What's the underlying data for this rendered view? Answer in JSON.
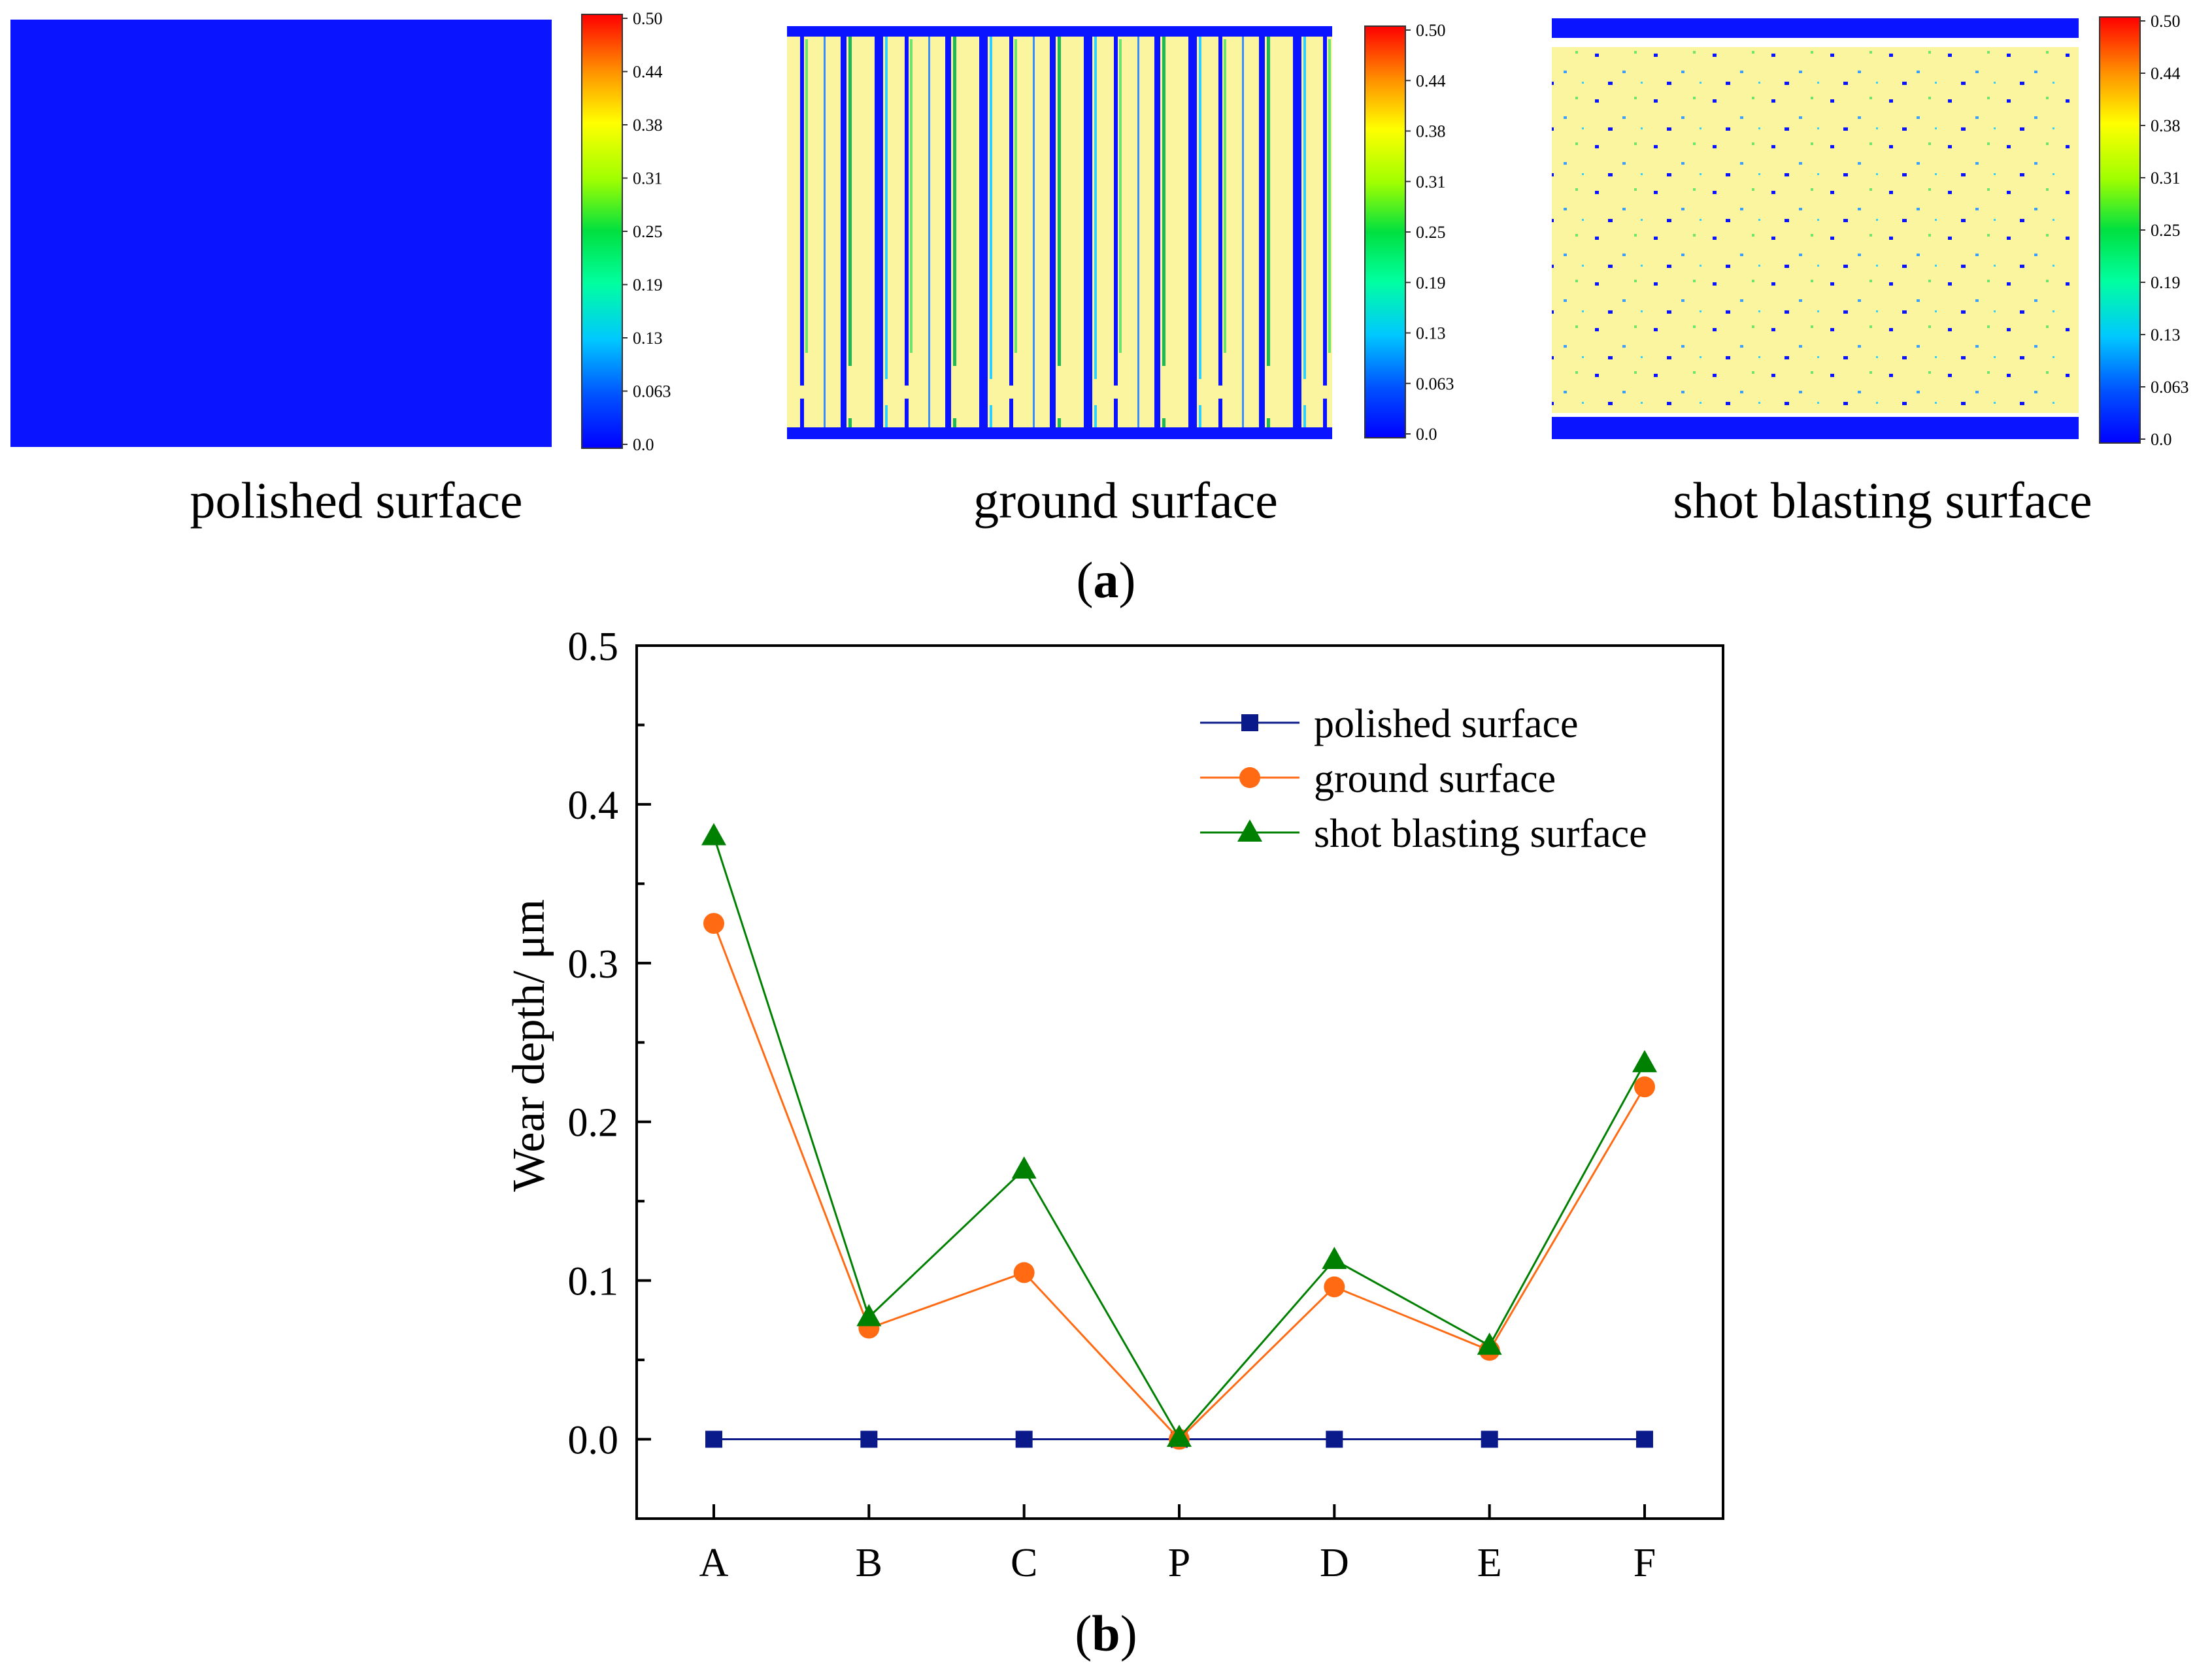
{
  "panel_a": {
    "label_paren_open": "(",
    "label_letter": "a",
    "label_paren_close": ")",
    "colorbar_ticks": [
      "0.50",
      "0.44",
      "0.38",
      "0.31",
      "0.25",
      "0.19",
      "0.13",
      "0.063",
      "0.0"
    ],
    "maps": [
      {
        "caption": "polished surface",
        "surface": "polished"
      },
      {
        "caption": "ground surface",
        "surface": "ground"
      },
      {
        "caption": "shot blasting surface",
        "surface": "shot_blasting"
      }
    ]
  },
  "panel_b": {
    "label_paren_open": "(",
    "label_letter": "b",
    "label_paren_close": ")"
  },
  "colors": {
    "polished": "#0b1a8a",
    "ground": "#ff6a13",
    "shot_blasting": "#008000",
    "map_blue": "#0a14ff",
    "map_yellow": "#fbf5a0"
  },
  "chart_data": {
    "type": "line",
    "title": "",
    "xlabel": "",
    "ylabel": "Wear depth/ μm",
    "categories": [
      "A",
      "B",
      "C",
      "P",
      "D",
      "E",
      "F"
    ],
    "ylim": [
      -0.05,
      0.5
    ],
    "yticks": [
      0.0,
      0.1,
      0.2,
      0.3,
      0.4,
      0.5
    ],
    "ytick_labels": [
      "0.0",
      "0.1",
      "0.2",
      "0.3",
      "0.4",
      "0.5"
    ],
    "legend_position": "top-right",
    "series": [
      {
        "name": "polished surface",
        "marker": "square",
        "values": [
          0.0,
          0.0,
          0.0,
          0.0,
          0.0,
          0.0,
          0.0
        ]
      },
      {
        "name": "ground surface",
        "marker": "circle",
        "values": [
          0.325,
          0.07,
          0.105,
          0.0,
          0.096,
          0.056,
          0.222
        ]
      },
      {
        "name": "shot blasting surface",
        "marker": "triangle",
        "values": [
          0.38,
          0.077,
          0.17,
          0.001,
          0.113,
          0.059,
          0.237
        ]
      }
    ]
  }
}
